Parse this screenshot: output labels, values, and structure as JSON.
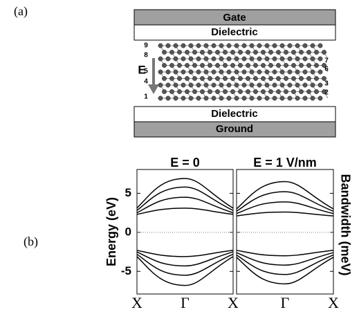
{
  "labels": {
    "a": "(a)",
    "b": "(b)"
  },
  "schematic": {
    "gate": "Gate",
    "dielectric_top": "Dielectric",
    "dielectric_bottom": "Dielectric",
    "ground": "Ground",
    "field": "E",
    "rows_left": [
      "9",
      "8",
      "5",
      "4",
      "1"
    ],
    "rows_right": [
      "7",
      "6",
      "3",
      "2"
    ]
  },
  "chart_data": [
    {
      "type": "line",
      "title": "E = 0",
      "y_label": "Energy (eV)",
      "categories": [
        "X",
        "Γ",
        "X"
      ],
      "ylim": [
        -7.9,
        8.05
      ],
      "yticks": [
        -5,
        0,
        5
      ],
      "series": [
        {
          "color": "#000000",
          "values": [
            3.1,
            6.9,
            3.1
          ]
        },
        {
          "color": "#000000",
          "values": [
            2.8,
            5.8,
            2.8
          ]
        },
        {
          "color": "#000000",
          "values": [
            2.5,
            4.5,
            2.5
          ]
        },
        {
          "color": "#000000",
          "values": [
            2.3,
            3.1,
            2.3
          ]
        },
        {
          "color": "#000000",
          "values": [
            -2.3,
            -3.1,
            -2.3
          ]
        },
        {
          "color": "#000000",
          "values": [
            -2.5,
            -4.3,
            -2.5
          ]
        },
        {
          "color": "#000000",
          "values": [
            -2.8,
            -5.5,
            -2.8
          ]
        },
        {
          "color": "#000000",
          "values": [
            -3.1,
            -6.8,
            -3.1
          ]
        }
      ]
    },
    {
      "type": "line",
      "title": "E = 1 V/nm",
      "y_label_right": "Bandwidth (meV)",
      "categories": [
        null,
        "Γ",
        "X"
      ],
      "ylim": [
        -7.9,
        8.05
      ],
      "yticks": [
        -5,
        0,
        5
      ],
      "series": [
        {
          "color": "#000000",
          "values": [
            3.0,
            6.5,
            3.0
          ]
        },
        {
          "color": "#000000",
          "values": [
            2.7,
            5.2,
            2.7
          ]
        },
        {
          "color": "#000000",
          "values": [
            2.4,
            3.9,
            2.4
          ]
        },
        {
          "color": "#000000",
          "values": [
            2.1,
            2.6,
            2.1
          ]
        },
        {
          "color": "#000000",
          "values": [
            -2.3,
            -3.0,
            -2.3
          ]
        },
        {
          "color": "#000000",
          "values": [
            -2.6,
            -4.2,
            -2.6
          ]
        },
        {
          "color": "#000000",
          "values": [
            -2.9,
            -5.4,
            -2.9
          ]
        },
        {
          "color": "#000000",
          "values": [
            -3.2,
            -6.6,
            -3.2
          ]
        }
      ]
    }
  ]
}
